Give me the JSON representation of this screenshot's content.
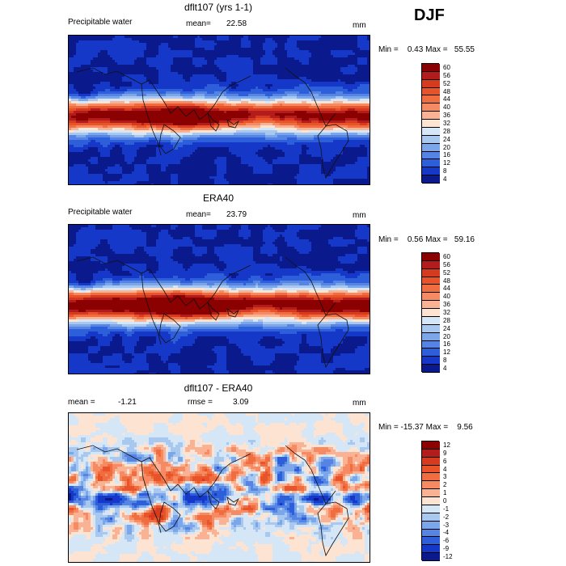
{
  "season_label": "DJF",
  "panels": [
    {
      "id": "model",
      "title": "dflt107 (yrs 1-1)",
      "left_label": "Precipitable water",
      "stat_label": "mean=",
      "stat_value": "22.58",
      "stat2_label": "",
      "stat2_value": "",
      "units": "mm",
      "minmax_text": "Min =    0.43 Max =   55.55",
      "colorbar": {
        "levels": [
          "60",
          "56",
          "52",
          "48",
          "44",
          "40",
          "36",
          "32",
          "28",
          "24",
          "20",
          "16",
          "12",
          "8",
          "4"
        ],
        "colors": [
          "#8b0000",
          "#b31c1c",
          "#d63a1f",
          "#e8532a",
          "#f06d40",
          "#f58a63",
          "#f9b394",
          "#fde3d2",
          "#d5e6f7",
          "#a8c8f0",
          "#7ca6ea",
          "#5584e5",
          "#2e5fdb",
          "#1538c8",
          "#0a1a8c"
        ]
      }
    },
    {
      "id": "obs",
      "title": "ERA40",
      "left_label": "Precipitable water",
      "stat_label": "mean=",
      "stat_value": "23.79",
      "stat2_label": "",
      "stat2_value": "",
      "units": "mm",
      "minmax_text": "Min =    0.56 Max =   59.16",
      "colorbar": {
        "levels": [
          "60",
          "56",
          "52",
          "48",
          "44",
          "40",
          "36",
          "32",
          "28",
          "24",
          "20",
          "16",
          "12",
          "8",
          "4"
        ],
        "colors": [
          "#8b0000",
          "#b31c1c",
          "#d63a1f",
          "#e8532a",
          "#f06d40",
          "#f58a63",
          "#f9b394",
          "#fde3d2",
          "#d5e6f7",
          "#a8c8f0",
          "#7ca6ea",
          "#5584e5",
          "#2e5fdb",
          "#1538c8",
          "#0a1a8c"
        ]
      }
    },
    {
      "id": "diff",
      "title": "dflt107 - ERA40",
      "left_label": "",
      "stat_label": "mean =",
      "stat_value": "-1.21",
      "stat2_label": "rmse =",
      "stat2_value": "3.09",
      "units": "mm",
      "minmax_text": "Min = -15.37 Max =    9.56",
      "colorbar": {
        "levels": [
          "12",
          "9",
          "6",
          "4",
          "3",
          "2",
          "1",
          "0",
          "-1",
          "-2",
          "-3",
          "-4",
          "-6",
          "-9",
          "-12"
        ],
        "colors": [
          "#8b0000",
          "#b31c1c",
          "#d63a1f",
          "#e8532a",
          "#f06d40",
          "#f58a63",
          "#f9b394",
          "#fde3d2",
          "#d5e6f7",
          "#a8c8f0",
          "#7ca6ea",
          "#5584e5",
          "#2e5fdb",
          "#1538c8",
          "#0a1a8c"
        ]
      }
    }
  ],
  "chart_data": [
    {
      "type": "heatmap",
      "title": "dflt107 (yrs 1-1)",
      "variable": "Precipitable water",
      "units": "mm",
      "mean": 22.58,
      "min": 0.43,
      "max": 55.55,
      "contour_levels": [
        4,
        8,
        12,
        16,
        20,
        24,
        28,
        32,
        36,
        40,
        44,
        48,
        52,
        56,
        60
      ]
    },
    {
      "type": "heatmap",
      "title": "ERA40",
      "variable": "Precipitable water",
      "units": "mm",
      "mean": 23.79,
      "min": 0.56,
      "max": 59.16,
      "contour_levels": [
        4,
        8,
        12,
        16,
        20,
        24,
        28,
        32,
        36,
        40,
        44,
        48,
        52,
        56,
        60
      ]
    },
    {
      "type": "heatmap",
      "title": "dflt107 - ERA40",
      "units": "mm",
      "mean": -1.21,
      "rmse": 3.09,
      "min": -15.37,
      "max": 9.56,
      "contour_levels": [
        -12,
        -9,
        -6,
        -4,
        -3,
        -2,
        -1,
        0,
        1,
        2,
        3,
        4,
        6,
        9,
        12
      ]
    }
  ]
}
